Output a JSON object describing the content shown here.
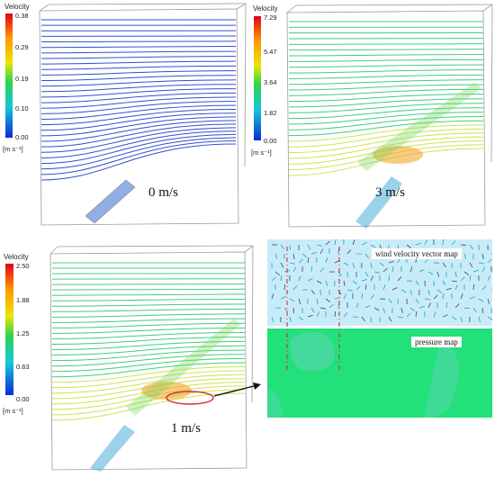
{
  "panels": [
    {
      "id": "p0",
      "caption": "0 m/s",
      "legend_title": "Velocity",
      "ticks": [
        "0.38",
        "0.29",
        "0.19",
        "0.10",
        "0.00"
      ],
      "unit": "[m s⁻¹]"
    },
    {
      "id": "p3",
      "caption": "3 m/s",
      "legend_title": "Velocity",
      "ticks": [
        "7.29",
        "5.47",
        "3.64",
        "1.82",
        "0.00"
      ],
      "unit": "[m s⁻¹]"
    },
    {
      "id": "p1",
      "caption": "1 m/s",
      "legend_title": "Velocity",
      "ticks": [
        "2.50",
        "1.88",
        "1.25",
        "0.63",
        "0.00"
      ],
      "unit": "[m s⁻¹]"
    }
  ],
  "zoom": {
    "vector_label": "wind velocity vector map",
    "pressure_label": "pressure map"
  },
  "colors": {
    "blue_streamline": "#1e3cc8",
    "green_streamline": "#2dc870",
    "pressure_field": "#22e07a",
    "vector_background": "#bfe9f5",
    "highlight_ellipse": "#d0303a"
  }
}
